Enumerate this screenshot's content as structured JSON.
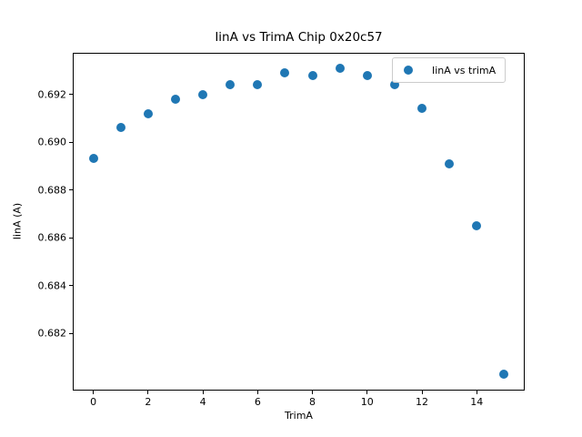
{
  "title": "IinA vs TrimA Chip 0x20c57",
  "axes": {
    "xlabel": "TrimA",
    "ylabel": "IinA (A)"
  },
  "legend": {
    "label": "IinA vs trimA",
    "position": "upper right"
  },
  "colors": {
    "marker": "#1f77b4",
    "spine": "#000000",
    "legend_border": "#cccccc",
    "background": "#ffffff"
  },
  "chart_data": {
    "type": "scatter",
    "title": "IinA vs TrimA Chip 0x20c57",
    "xlabel": "TrimA",
    "ylabel": "IinA (A)",
    "x": [
      0,
      1,
      2,
      3,
      4,
      5,
      6,
      7,
      8,
      9,
      10,
      11,
      12,
      13,
      14,
      15
    ],
    "series": [
      {
        "name": "IinA vs trimA",
        "values": [
          0.6893,
          0.6906,
          0.6912,
          0.6918,
          0.692,
          0.6924,
          0.6924,
          0.6929,
          0.6928,
          0.6931,
          0.6928,
          0.6924,
          0.6914,
          0.6891,
          0.6865,
          0.6803
        ]
      }
    ],
    "xticks": [
      0,
      2,
      4,
      6,
      8,
      10,
      12,
      14
    ],
    "yticks": [
      0.682,
      0.684,
      0.686,
      0.688,
      0.69,
      0.692
    ],
    "xlim": [
      -0.75,
      15.75
    ],
    "ylim": [
      0.6796,
      0.69374
    ],
    "grid": false,
    "legend_position": "upper right",
    "marker": "circle",
    "marker_size_px": 10
  }
}
